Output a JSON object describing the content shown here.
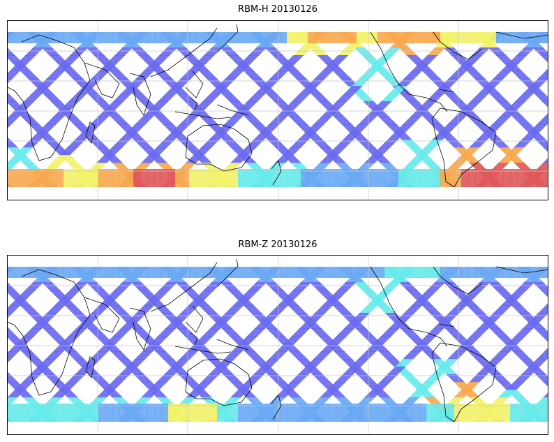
{
  "panels": [
    {
      "title": "RBM-H 20130126",
      "variant": "H"
    },
    {
      "title": "RBM-Z 20130126",
      "variant": "Z"
    }
  ],
  "colors": {
    "base": "#6a6af0",
    "mid": "#6aa8f4",
    "cyan": "#66eaea",
    "yellow": "#f2f26a",
    "orange": "#f7a84f",
    "red": "#e0585a",
    "coast": "#000000",
    "grid": "#c8c8c8"
  }
}
